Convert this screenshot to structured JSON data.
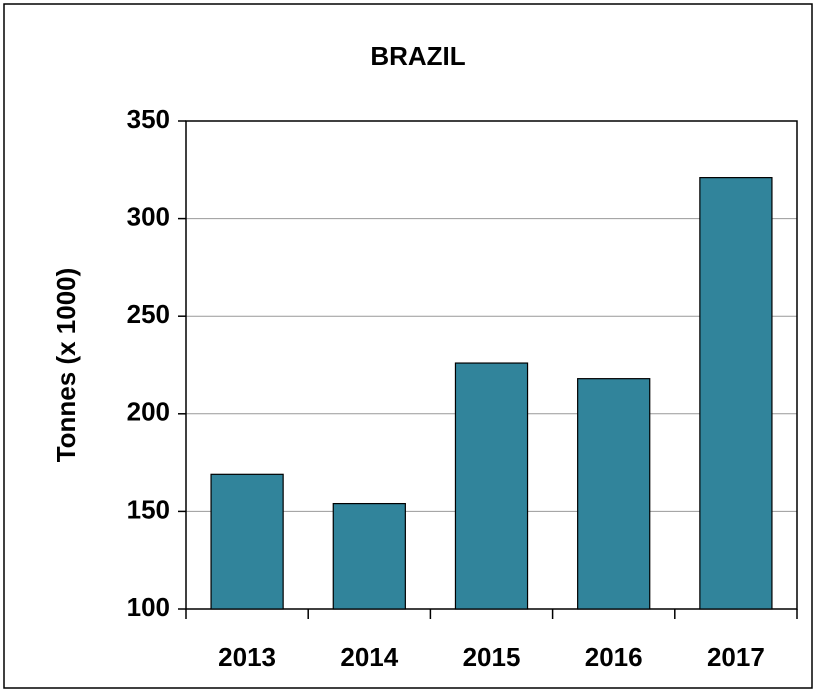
{
  "chart_data": {
    "type": "bar",
    "title": "BRAZIL",
    "y_label": "Tonnes (x 1000)",
    "categories": [
      "2013",
      "2014",
      "2015",
      "2016",
      "2017"
    ],
    "values": [
      169,
      154,
      226,
      218,
      321
    ],
    "color": "#31849b",
    "ylim": [
      100,
      350
    ],
    "yticks": [
      100,
      150,
      200,
      250,
      300,
      350
    ],
    "grid": true
  }
}
